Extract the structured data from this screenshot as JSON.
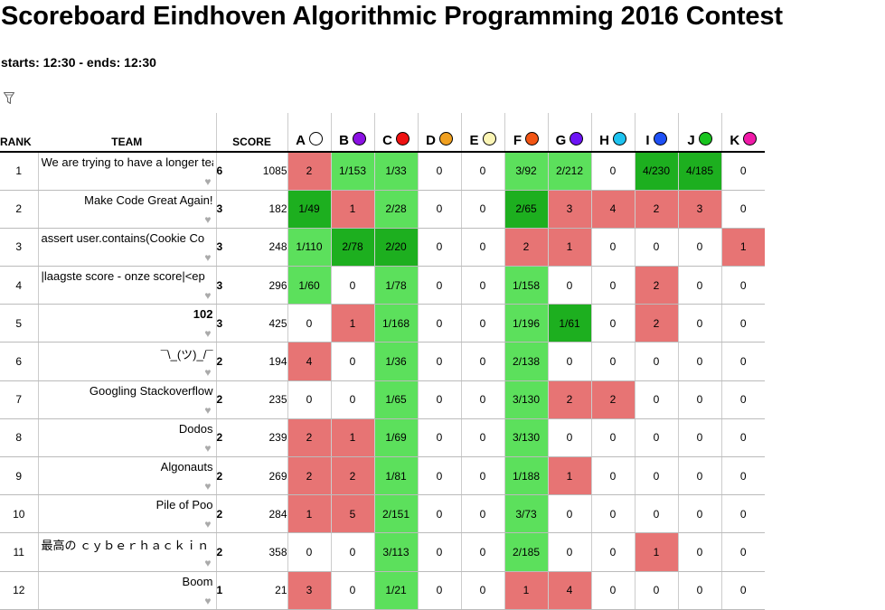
{
  "page": {
    "title": "Scoreboard Eindhoven Algorithmic Programming 2016 Contest",
    "times": "starts: 12:30 - ends: 12:30",
    "filter_icon": "filter-icon"
  },
  "columns": {
    "rank": "RANK",
    "team": "TEAM",
    "score": "SCORE"
  },
  "colors": {
    "first": "#1daf1f",
    "correct": "#5ce05c",
    "wrong": "#e77474"
  },
  "problems": [
    {
      "label": "A",
      "color": "#ffffff"
    },
    {
      "label": "B",
      "color": "#8b11e3"
    },
    {
      "label": "C",
      "color": "#ee1111"
    },
    {
      "label": "D",
      "color": "#f0a020"
    },
    {
      "label": "E",
      "color": "#fbf5b5"
    },
    {
      "label": "F",
      "color": "#f25514"
    },
    {
      "label": "G",
      "color": "#6d14f5"
    },
    {
      "label": "H",
      "color": "#1ec3f0"
    },
    {
      "label": "I",
      "color": "#1e50f5"
    },
    {
      "label": "J",
      "color": "#18c41e"
    },
    {
      "label": "K",
      "color": "#f01aa8"
    }
  ],
  "rows": [
    {
      "rank": "1",
      "team": "We are trying to have a longer team name",
      "align": "left",
      "solved": "6",
      "points": "1085",
      "cells": [
        [
          "2",
          "wrong"
        ],
        [
          "1/153",
          "correct"
        ],
        [
          "1/33",
          "correct"
        ],
        [
          "0",
          "empty"
        ],
        [
          "0",
          "empty"
        ],
        [
          "3/92",
          "correct"
        ],
        [
          "2/212",
          "correct"
        ],
        [
          "0",
          "empty"
        ],
        [
          "4/230",
          "first"
        ],
        [
          "4/185",
          "first"
        ],
        [
          "0",
          "empty"
        ]
      ]
    },
    {
      "rank": "2",
      "team": "Make Code Great Again!",
      "align": "right",
      "solved": "3",
      "points": "182",
      "cells": [
        [
          "1/49",
          "first"
        ],
        [
          "1",
          "wrong"
        ],
        [
          "2/28",
          "correct"
        ],
        [
          "0",
          "empty"
        ],
        [
          "0",
          "empty"
        ],
        [
          "2/65",
          "first"
        ],
        [
          "3",
          "wrong"
        ],
        [
          "4",
          "wrong"
        ],
        [
          "2",
          "wrong"
        ],
        [
          "3",
          "wrong"
        ],
        [
          "0",
          "empty"
        ]
      ]
    },
    {
      "rank": "3",
      "team": "assert user.contains(Cookie Co",
      "align": "left",
      "solved": "3",
      "points": "248",
      "cells": [
        [
          "1/110",
          "correct"
        ],
        [
          "2/78",
          "first"
        ],
        [
          "2/20",
          "first"
        ],
        [
          "0",
          "empty"
        ],
        [
          "0",
          "empty"
        ],
        [
          "2",
          "wrong"
        ],
        [
          "1",
          "wrong"
        ],
        [
          "0",
          "empty"
        ],
        [
          "0",
          "empty"
        ],
        [
          "0",
          "empty"
        ],
        [
          "1",
          "wrong"
        ]
      ]
    },
    {
      "rank": "4",
      "team": "|laagste score - onze score|<ep",
      "align": "left",
      "solved": "3",
      "points": "296",
      "cells": [
        [
          "1/60",
          "correct"
        ],
        [
          "0",
          "empty"
        ],
        [
          "1/78",
          "correct"
        ],
        [
          "0",
          "empty"
        ],
        [
          "0",
          "empty"
        ],
        [
          "1/158",
          "correct"
        ],
        [
          "0",
          "empty"
        ],
        [
          "0",
          "empty"
        ],
        [
          "2",
          "wrong"
        ],
        [
          "0",
          "empty"
        ],
        [
          "0",
          "empty"
        ]
      ]
    },
    {
      "rank": "5",
      "team": "102",
      "align": "right",
      "bold": true,
      "solved": "3",
      "points": "425",
      "cells": [
        [
          "0",
          "empty"
        ],
        [
          "1",
          "wrong"
        ],
        [
          "1/168",
          "correct"
        ],
        [
          "0",
          "empty"
        ],
        [
          "0",
          "empty"
        ],
        [
          "1/196",
          "correct"
        ],
        [
          "1/61",
          "first"
        ],
        [
          "0",
          "empty"
        ],
        [
          "2",
          "wrong"
        ],
        [
          "0",
          "empty"
        ],
        [
          "0",
          "empty"
        ]
      ]
    },
    {
      "rank": "6",
      "team": "¯\\_(ツ)_/¯",
      "align": "right",
      "solved": "2",
      "points": "194",
      "cells": [
        [
          "4",
          "wrong"
        ],
        [
          "0",
          "empty"
        ],
        [
          "1/36",
          "correct"
        ],
        [
          "0",
          "empty"
        ],
        [
          "0",
          "empty"
        ],
        [
          "2/138",
          "correct"
        ],
        [
          "0",
          "empty"
        ],
        [
          "0",
          "empty"
        ],
        [
          "0",
          "empty"
        ],
        [
          "0",
          "empty"
        ],
        [
          "0",
          "empty"
        ]
      ]
    },
    {
      "rank": "7",
      "team": "Googling Stackoverflow",
      "align": "right",
      "solved": "2",
      "points": "235",
      "cells": [
        [
          "0",
          "empty"
        ],
        [
          "0",
          "empty"
        ],
        [
          "1/65",
          "correct"
        ],
        [
          "0",
          "empty"
        ],
        [
          "0",
          "empty"
        ],
        [
          "3/130",
          "correct"
        ],
        [
          "2",
          "wrong"
        ],
        [
          "2",
          "wrong"
        ],
        [
          "0",
          "empty"
        ],
        [
          "0",
          "empty"
        ],
        [
          "0",
          "empty"
        ]
      ]
    },
    {
      "rank": "8",
      "team": "Dodos",
      "align": "right",
      "solved": "2",
      "points": "239",
      "cells": [
        [
          "2",
          "wrong"
        ],
        [
          "1",
          "wrong"
        ],
        [
          "1/69",
          "correct"
        ],
        [
          "0",
          "empty"
        ],
        [
          "0",
          "empty"
        ],
        [
          "3/130",
          "correct"
        ],
        [
          "0",
          "empty"
        ],
        [
          "0",
          "empty"
        ],
        [
          "0",
          "empty"
        ],
        [
          "0",
          "empty"
        ],
        [
          "0",
          "empty"
        ]
      ]
    },
    {
      "rank": "9",
      "team": "Algonauts",
      "align": "right",
      "solved": "2",
      "points": "269",
      "cells": [
        [
          "2",
          "wrong"
        ],
        [
          "2",
          "wrong"
        ],
        [
          "1/81",
          "correct"
        ],
        [
          "0",
          "empty"
        ],
        [
          "0",
          "empty"
        ],
        [
          "1/188",
          "correct"
        ],
        [
          "1",
          "wrong"
        ],
        [
          "0",
          "empty"
        ],
        [
          "0",
          "empty"
        ],
        [
          "0",
          "empty"
        ],
        [
          "0",
          "empty"
        ]
      ]
    },
    {
      "rank": "10",
      "team": "Pile of Poo",
      "align": "right",
      "solved": "2",
      "points": "284",
      "cells": [
        [
          "1",
          "wrong"
        ],
        [
          "5",
          "wrong"
        ],
        [
          "2/151",
          "correct"
        ],
        [
          "0",
          "empty"
        ],
        [
          "0",
          "empty"
        ],
        [
          "3/73",
          "correct"
        ],
        [
          "0",
          "empty"
        ],
        [
          "0",
          "empty"
        ],
        [
          "0",
          "empty"
        ],
        [
          "0",
          "empty"
        ],
        [
          "0",
          "empty"
        ]
      ]
    },
    {
      "rank": "11",
      "team": "最高の ｃｙｂｅｒｈａｃｋｉｎ",
      "align": "left",
      "solved": "2",
      "points": "358",
      "cells": [
        [
          "0",
          "empty"
        ],
        [
          "0",
          "empty"
        ],
        [
          "3/113",
          "correct"
        ],
        [
          "0",
          "empty"
        ],
        [
          "0",
          "empty"
        ],
        [
          "2/185",
          "correct"
        ],
        [
          "0",
          "empty"
        ],
        [
          "0",
          "empty"
        ],
        [
          "1",
          "wrong"
        ],
        [
          "0",
          "empty"
        ],
        [
          "0",
          "empty"
        ]
      ]
    },
    {
      "rank": "12",
      "team": "Boom",
      "align": "right",
      "solved": "1",
      "points": "21",
      "cells": [
        [
          "3",
          "wrong"
        ],
        [
          "0",
          "empty"
        ],
        [
          "1/21",
          "correct"
        ],
        [
          "0",
          "empty"
        ],
        [
          "0",
          "empty"
        ],
        [
          "1",
          "wrong"
        ],
        [
          "4",
          "wrong"
        ],
        [
          "0",
          "empty"
        ],
        [
          "0",
          "empty"
        ],
        [
          "0",
          "empty"
        ],
        [
          "0",
          "empty"
        ]
      ]
    }
  ]
}
